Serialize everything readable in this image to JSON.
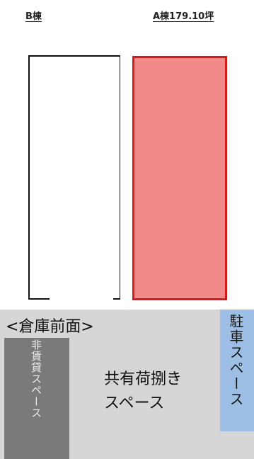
{
  "header": {
    "building_b_label": "B棟",
    "building_a_label": "A棟179.10坪"
  },
  "front": {
    "title": "<倉庫前面>"
  },
  "areas": {
    "non_rental": "非賃貸スペース",
    "shared_line1": "共有荷捌き",
    "shared_line2": "スペース",
    "parking": "駐車スペース"
  },
  "colors": {
    "building_a_fill": "#f28a8a",
    "building_a_border": "#d01c1c",
    "bottom_bg": "#d6d6d6",
    "non_rental_bg": "#7a7a7a",
    "parking_bg": "#9dbfe6"
  }
}
